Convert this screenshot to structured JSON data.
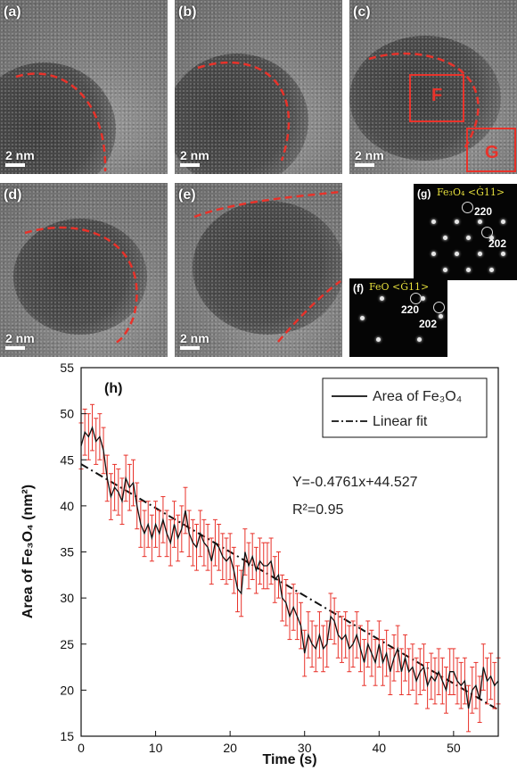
{
  "panels": {
    "a": {
      "label": "(a)",
      "scale": "2 nm"
    },
    "b": {
      "label": "(b)",
      "scale": "2 nm"
    },
    "c": {
      "label": "(c)",
      "scale": "2 nm",
      "box_f": "F",
      "box_g": "G"
    },
    "d": {
      "label": "(d)",
      "scale": "2 nm"
    },
    "e": {
      "label": "(e)",
      "scale": "2 nm"
    },
    "f": {
      "label": "(f)",
      "title": "FeO <Ġ11>",
      "spot1": "220",
      "spot2": "202"
    },
    "g": {
      "label": "(g)",
      "title": "Fe₃O₄ <Ġ11>",
      "spot1": "220",
      "spot2": "202"
    }
  },
  "colors": {
    "series": "#111111",
    "error_bars": "#e8322a",
    "boundary": "#e8322a"
  },
  "chart_data": {
    "type": "line",
    "panel_label": "(h)",
    "xlabel": "Time (s)",
    "ylabel": "Area of Fe₃O₄ (nm²)",
    "xlim": [
      0,
      56
    ],
    "ylim": [
      15,
      55
    ],
    "xticks": [
      0,
      10,
      20,
      30,
      40,
      50
    ],
    "yticks": [
      15,
      20,
      25,
      30,
      35,
      40,
      45,
      50,
      55
    ],
    "legend_position": "top-right",
    "legend": [
      "Area of Fe₃O₄",
      "Linear fit"
    ],
    "equation": "Y=-0.4761x+44.527",
    "r_squared": "R²=0.95",
    "error_bar": 2.5,
    "fit": {
      "slope": -0.4761,
      "intercept": 44.527
    },
    "series": [
      {
        "name": "Area of Fe₃O₄",
        "x": [
          0,
          0.5,
          1,
          1.5,
          2,
          2.5,
          3,
          3.5,
          4,
          4.5,
          5,
          5.5,
          6,
          6.5,
          7,
          7.5,
          8,
          8.5,
          9,
          9.5,
          10,
          10.5,
          11,
          11.5,
          12,
          12.5,
          13,
          13.5,
          14,
          14.5,
          15,
          15.5,
          16,
          16.5,
          17,
          17.5,
          18,
          18.5,
          19,
          19.5,
          20,
          20.5,
          21,
          21.5,
          22,
          22.5,
          23,
          23.5,
          24,
          24.5,
          25,
          25.5,
          26,
          26.5,
          27,
          27.5,
          28,
          28.5,
          29,
          29.5,
          30,
          30.5,
          31,
          31.5,
          32,
          32.5,
          33,
          33.5,
          34,
          34.5,
          35,
          35.5,
          36,
          36.5,
          37,
          37.5,
          38,
          38.5,
          39,
          39.5,
          40,
          40.5,
          41,
          41.5,
          42,
          42.5,
          43,
          43.5,
          44,
          44.5,
          45,
          45.5,
          46,
          46.5,
          47,
          47.5,
          48,
          48.5,
          49,
          49.5,
          50,
          50.5,
          51,
          51.5,
          52,
          52.5,
          53,
          53.5,
          54,
          54.5,
          55,
          55.5,
          56
        ],
        "y": [
          46.5,
          48,
          47.5,
          48.5,
          47,
          47.5,
          46,
          43,
          41,
          42,
          41.5,
          40.5,
          43,
          42,
          42.5,
          40,
          38,
          37,
          38,
          36.5,
          38,
          37,
          38.5,
          37,
          36,
          38,
          36.5,
          37.5,
          39.5,
          37,
          36,
          35.5,
          37,
          36,
          35.5,
          34,
          36,
          35.5,
          34.5,
          34,
          34.5,
          33,
          31,
          30.5,
          35,
          33.5,
          34.5,
          33,
          34,
          33.5,
          33.5,
          34,
          32,
          32.5,
          30,
          29.5,
          28,
          29,
          28,
          27,
          24,
          26,
          25,
          24.5,
          26,
          24.5,
          25,
          28,
          27.5,
          26,
          25.5,
          26,
          24.5,
          25,
          26,
          24.5,
          23,
          25,
          24,
          23,
          25,
          23,
          24,
          22,
          23.5,
          24.5,
          22,
          23.5,
          22,
          22.5,
          21,
          22,
          22.5,
          20.5,
          21.5,
          21,
          22,
          21,
          20,
          22,
          22,
          21,
          20.5,
          21,
          18,
          20,
          20.5,
          19,
          22.5,
          21,
          21.5,
          20.5,
          21
        ]
      }
    ]
  }
}
